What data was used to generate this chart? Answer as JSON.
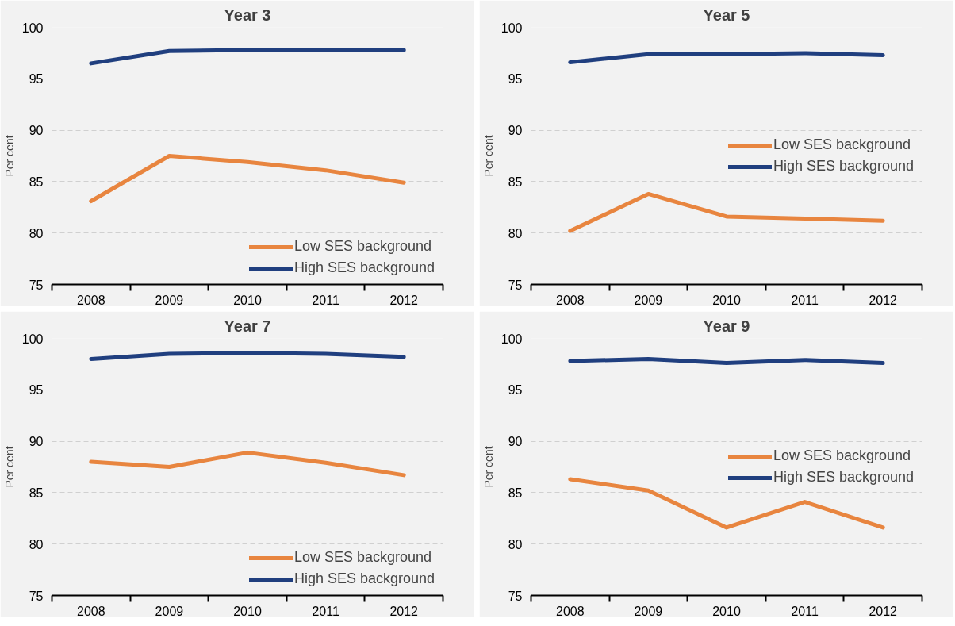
{
  "chart_data": [
    {
      "type": "line",
      "title": "Year 3",
      "ylabel": "Per cent",
      "categories": [
        "2008",
        "2009",
        "2010",
        "2011",
        "2012"
      ],
      "ylim": [
        75,
        100
      ],
      "yticks": [
        75,
        80,
        85,
        90,
        95,
        100
      ],
      "grid": "y",
      "legend": "bottom right",
      "series": [
        {
          "name": "Low SES background",
          "color": "#e8853f",
          "values": [
            83.1,
            87.5,
            86.9,
            86.1,
            84.9
          ]
        },
        {
          "name": "High SES background",
          "color": "#203f7f",
          "values": [
            96.5,
            97.7,
            97.8,
            97.8,
            97.8
          ]
        }
      ]
    },
    {
      "type": "line",
      "title": "Year 5",
      "ylabel": "Per cent",
      "categories": [
        "2008",
        "2009",
        "2010",
        "2011",
        "2012"
      ],
      "ylim": [
        75,
        100
      ],
      "yticks": [
        75,
        80,
        85,
        90,
        95,
        100
      ],
      "grid": "y",
      "legend": "right",
      "series": [
        {
          "name": "Low SES background",
          "color": "#e8853f",
          "values": [
            80.2,
            83.8,
            81.6,
            81.4,
            81.2
          ]
        },
        {
          "name": "High SES background",
          "color": "#203f7f",
          "values": [
            96.6,
            97.4,
            97.4,
            97.5,
            97.3
          ]
        }
      ]
    },
    {
      "type": "line",
      "title": "Year 7",
      "ylabel": "Per cent",
      "categories": [
        "2008",
        "2009",
        "2010",
        "2011",
        "2012"
      ],
      "ylim": [
        75,
        100
      ],
      "yticks": [
        75,
        80,
        85,
        90,
        95,
        100
      ],
      "grid": "y",
      "legend": "bottom right",
      "series": [
        {
          "name": "Low SES background",
          "color": "#e8853f",
          "values": [
            88.0,
            87.5,
            88.9,
            87.9,
            86.7
          ]
        },
        {
          "name": "High SES background",
          "color": "#203f7f",
          "values": [
            98.0,
            98.5,
            98.6,
            98.5,
            98.2
          ]
        }
      ]
    },
    {
      "type": "line",
      "title": "Year 9",
      "ylabel": "Per cent",
      "categories": [
        "2008",
        "2009",
        "2010",
        "2011",
        "2012"
      ],
      "ylim": [
        75,
        100
      ],
      "yticks": [
        75,
        80,
        85,
        90,
        95,
        100
      ],
      "grid": "y",
      "legend": "right",
      "series": [
        {
          "name": "Low SES background",
          "color": "#e8853f",
          "values": [
            86.3,
            85.2,
            81.6,
            84.1,
            81.6
          ]
        },
        {
          "name": "High SES background",
          "color": "#203f7f",
          "values": [
            97.8,
            98.0,
            97.6,
            97.9,
            97.6
          ]
        }
      ]
    }
  ]
}
